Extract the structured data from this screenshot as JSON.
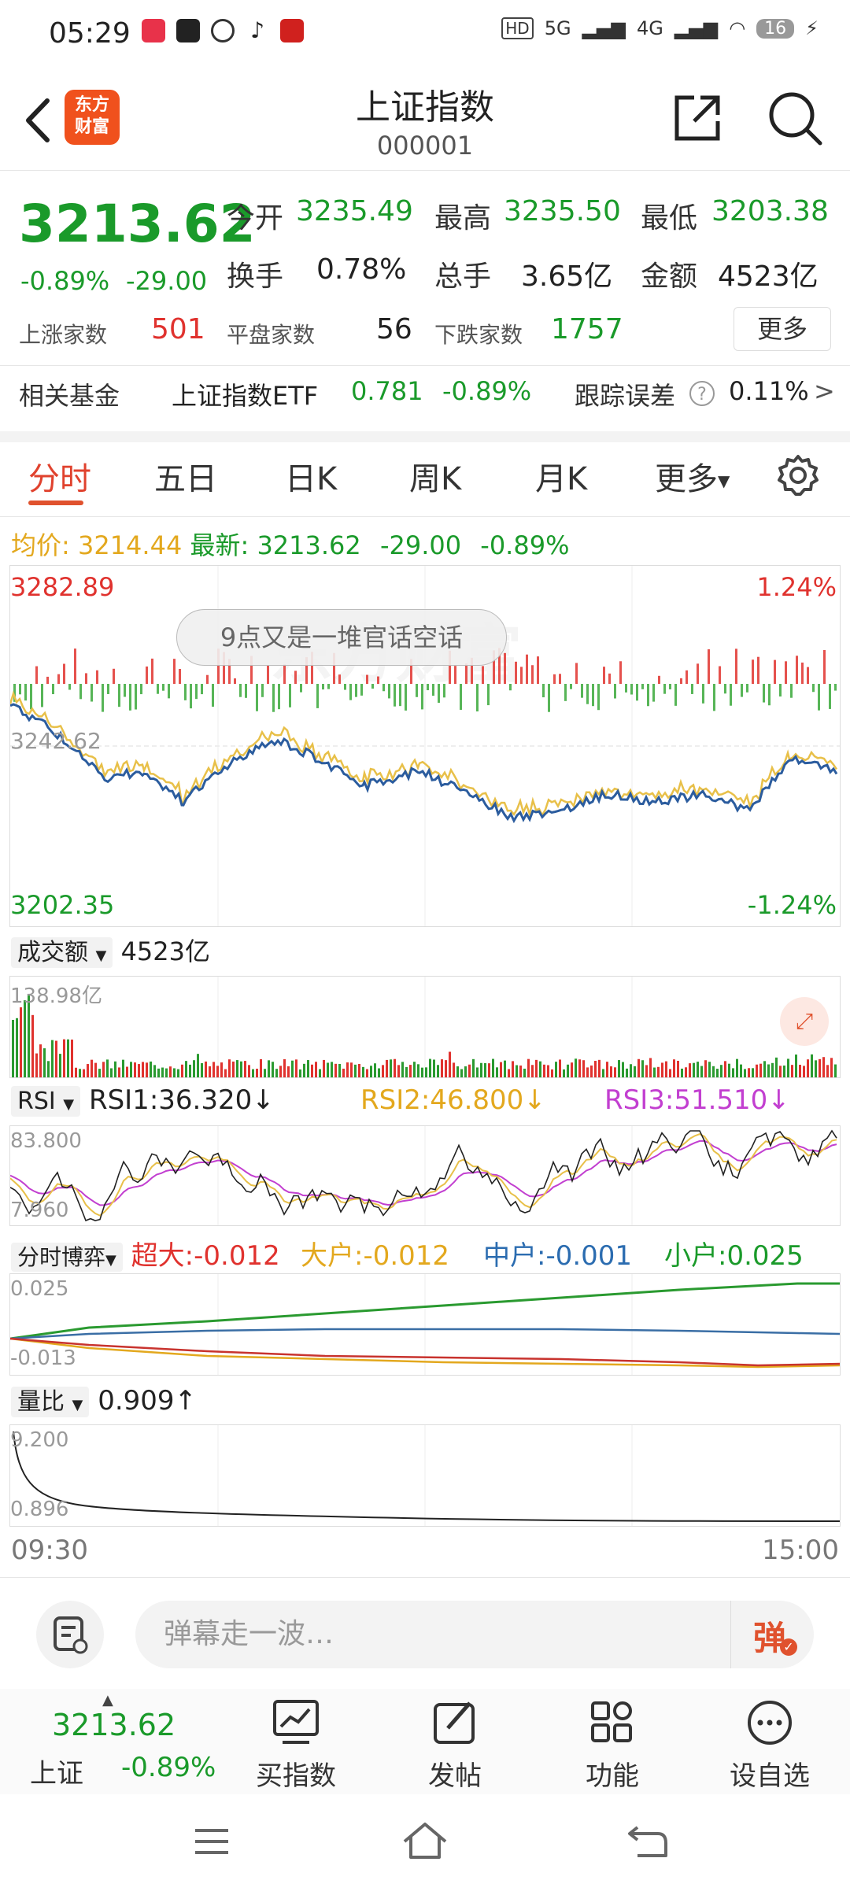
{
  "status_bar": {
    "time": "05:29",
    "battery": "16",
    "net1": "5G",
    "net2": "4G",
    "hd": "HD"
  },
  "header": {
    "title": "上证指数",
    "code": "000001",
    "logo_line1": "东方",
    "logo_line2": "财富"
  },
  "quote": {
    "price": "3213.62",
    "change_pct": "-0.89%",
    "change": "-29.00",
    "open_label": "今开",
    "open": "3235.49",
    "high_label": "最高",
    "high": "3235.50",
    "low_label": "最低",
    "low": "3203.38",
    "turnover_label": "换手",
    "turnover": "0.78%",
    "volume_label": "总手",
    "volume": "3.65亿",
    "amount_label": "金额",
    "amount": "4523亿",
    "up_label": "上涨家数",
    "up": "501",
    "flat_label": "平盘家数",
    "flat": "56",
    "down_label": "下跌家数",
    "down": "1757",
    "more": "更多"
  },
  "fund": {
    "label": "相关基金",
    "name": "上证指数ETF",
    "price": "0.781",
    "pct": "-0.89%",
    "err_label": "跟踪误差",
    "err": "0.11%",
    "arrow": ">"
  },
  "tabs": [
    "分时",
    "五日",
    "日K",
    "周K",
    "月K",
    "更多"
  ],
  "avg_line": {
    "avg_label": "均价:",
    "avg": "3214.44",
    "last_label": "最新:",
    "last": "3213.62",
    "chg": "-29.00",
    "pct": "-0.89%"
  },
  "main_chart": {
    "top": "3282.89",
    "top_pct": "1.24%",
    "bottom": "3202.35",
    "bottom_pct": "-1.24%",
    "mid": "3242.62",
    "toast": "9点又是一堆官话空话",
    "watermark": "东方财富"
  },
  "volume": {
    "label": "成交额",
    "total": "4523亿",
    "max": "138.98亿"
  },
  "rsi": {
    "label": "RSI",
    "rsi1": "RSI1:36.320↓",
    "rsi2": "RSI2:46.800↓",
    "rsi3": "RSI3:51.510↓",
    "max": "83.800",
    "min": "7.960"
  },
  "flow": {
    "label": "分时博弈",
    "super": "超大:-0.012",
    "big": "大户:-0.012",
    "mid": "中户:-0.001",
    "small": "小户:0.025",
    "max": "0.025",
    "min": "-0.013"
  },
  "ratio": {
    "label": "量比",
    "value": "0.909↑",
    "max": "9.200",
    "min": "0.896"
  },
  "time_axis": {
    "start": "09:30",
    "end": "15:00"
  },
  "danmu": {
    "placeholder": "弹幕走一波…",
    "toggle": "弹"
  },
  "tabbar": {
    "index_price": "3213.62",
    "index_name": "上证",
    "index_pct": "-0.89%",
    "buy": "买指数",
    "post": "发帖",
    "func": "功能",
    "watch": "设自选"
  },
  "colors": {
    "up": "#e0322e",
    "down": "#1a9a2a",
    "price_line": "#2b5c9e",
    "avg_line": "#e8c049"
  }
}
